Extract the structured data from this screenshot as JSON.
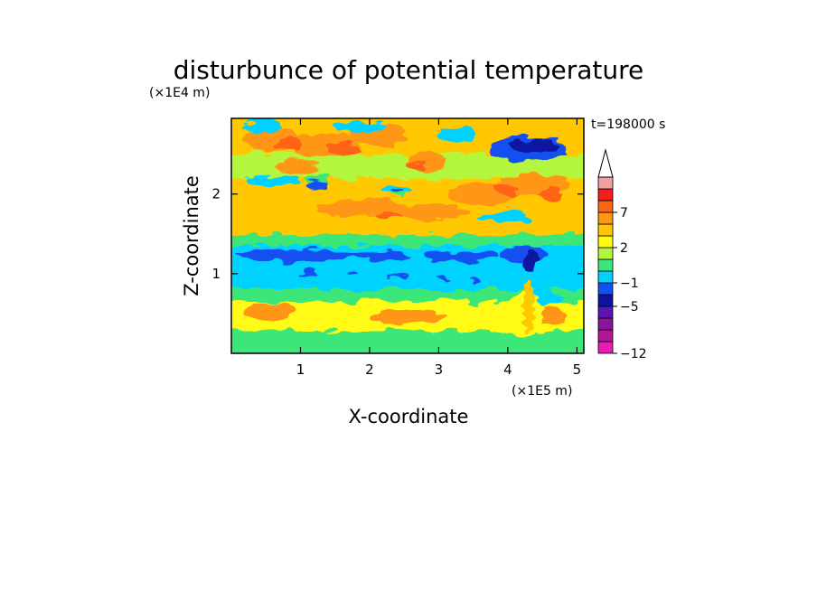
{
  "chart_data": {
    "type": "heatmap",
    "title": "disturbunce of potential temperature",
    "xlabel": "X-coordinate",
    "ylabel": "Z-coordinate",
    "x_unit": "(×1E5 m)",
    "y_unit": "(×1E4 m)",
    "time_label": "t=198000 s",
    "xlim": [
      0,
      5.1
    ],
    "ylim": [
      0,
      2.95
    ],
    "xticks": [
      "1",
      "2",
      "3",
      "4",
      "5"
    ],
    "xtick_values": [
      1,
      2,
      3,
      4,
      5
    ],
    "yticks": [
      "1",
      "2"
    ],
    "ytick_values": [
      1,
      2
    ],
    "colorbar": {
      "levels": [
        -12,
        -10,
        -8,
        -6,
        -5,
        -3,
        -1,
        0,
        1,
        2,
        4,
        6,
        7,
        9
      ],
      "tick_labels": [
        "7",
        "2",
        "−1",
        "−5",
        "−12"
      ],
      "tick_values": [
        7,
        2,
        -1,
        -5,
        -12
      ],
      "colors": [
        "#e61cb4",
        "#b41496",
        "#8c149c",
        "#5a14b4",
        "#0a14a0",
        "#1450f0",
        "#00d2ff",
        "#3ce678",
        "#b4f53c",
        "#fffa14",
        "#ffc800",
        "#ff9614",
        "#ff6414",
        "#f01e1e",
        "#f0a0a0"
      ],
      "extend": "max"
    },
    "bands": [
      {
        "z_range": [
          2.5,
          2.9
        ],
        "dominant": "2 to 6",
        "description_from_image": "orange/yellow"
      },
      {
        "z_range": [
          2.1,
          2.5
        ],
        "dominant": "0 to 2"
      },
      {
        "z_range": [
          1.4,
          2.1
        ],
        "dominant": "1 to 6"
      },
      {
        "z_range": [
          0.7,
          1.3
        ],
        "dominant": "-3 to -1"
      },
      {
        "z_range": [
          0.0,
          0.7
        ],
        "dominant": "1 to 4"
      }
    ]
  }
}
